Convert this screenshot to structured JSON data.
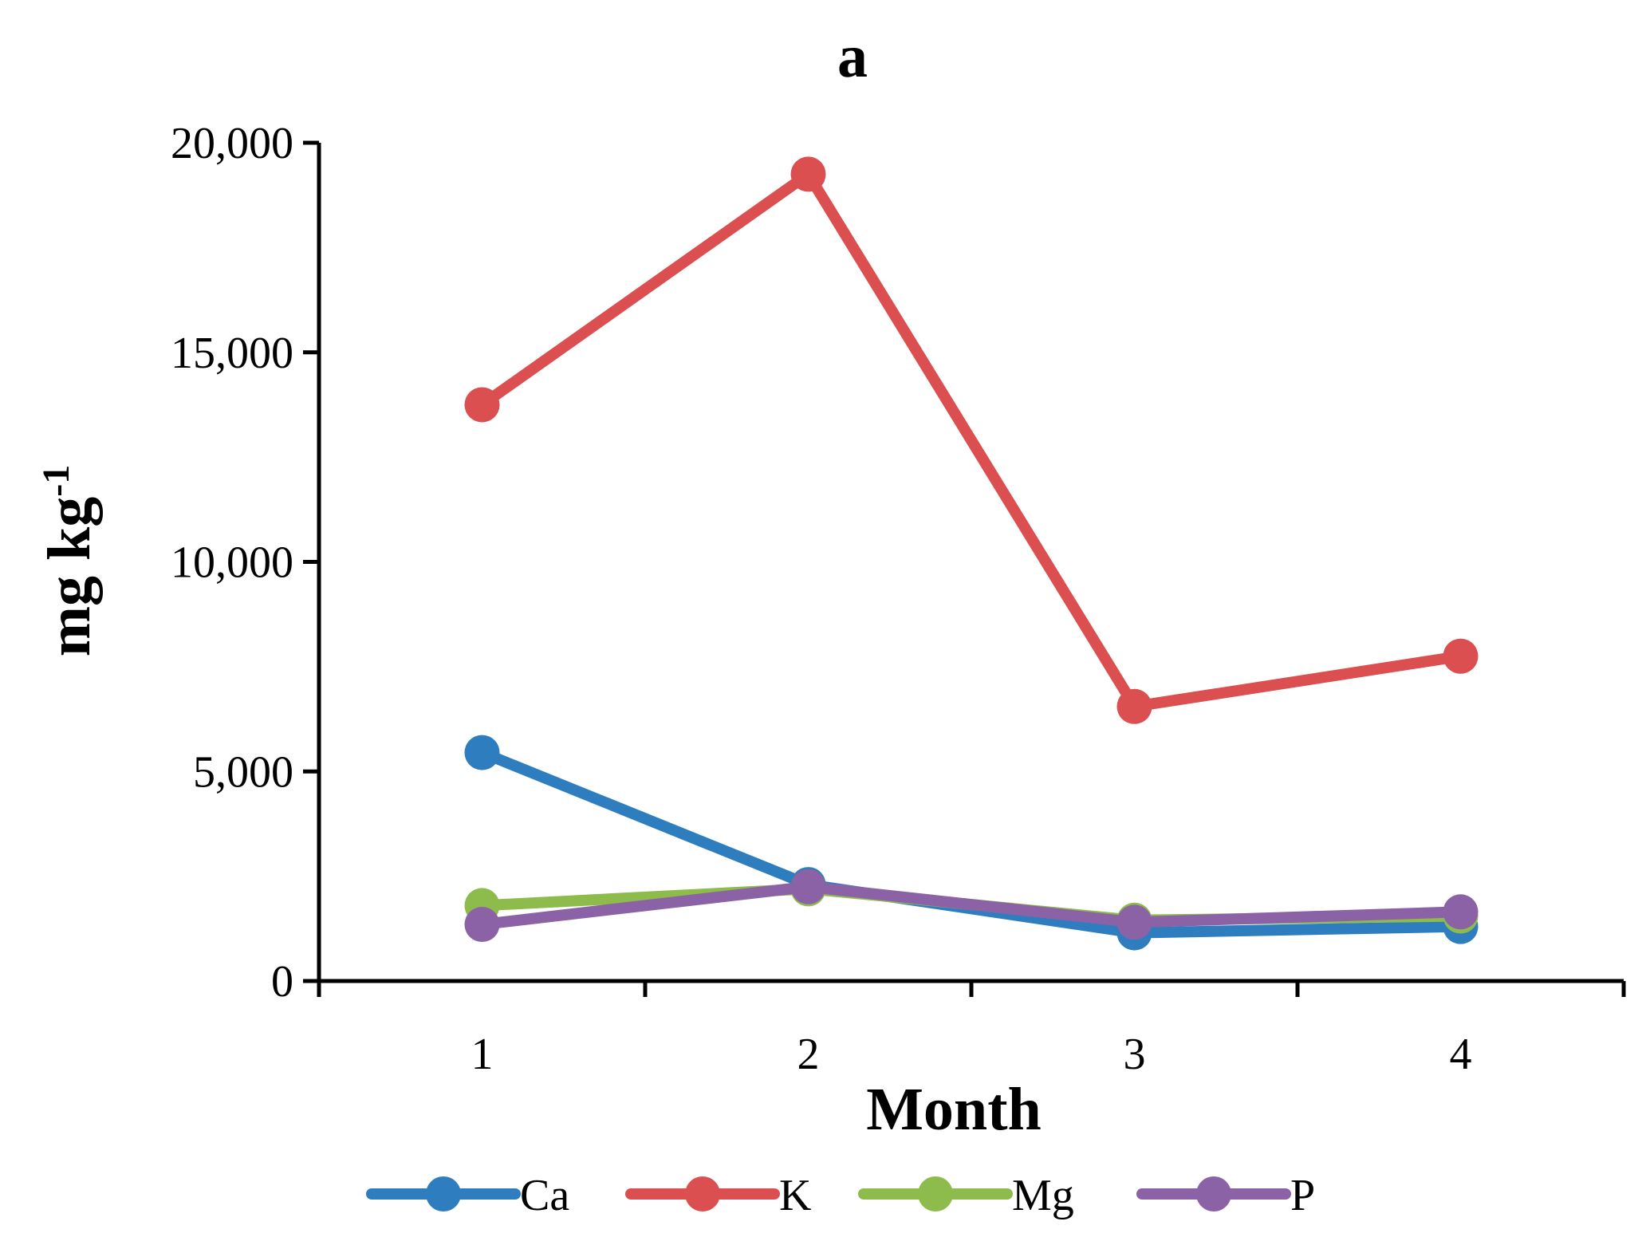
{
  "chart_data": {
    "type": "line",
    "title": "a",
    "xlabel": "Month",
    "ylabel": "mg kg",
    "ylabel_superscript": "-1",
    "categories": [
      "1",
      "2",
      "3",
      "4"
    ],
    "ylim": [
      0,
      20000
    ],
    "yticks": [
      0,
      5000,
      10000,
      15000,
      20000
    ],
    "ytick_labels": [
      "0",
      "5,000",
      "10,000",
      "15,000",
      "20,000"
    ],
    "grid": false,
    "legend_position": "bottom",
    "series": [
      {
        "name": "Ca",
        "color": "#2E7EBF",
        "values": [
          5450,
          2300,
          1150,
          1300
        ]
      },
      {
        "name": "K",
        "color": "#DB4F50",
        "values": [
          13750,
          19250,
          6550,
          7750
        ]
      },
      {
        "name": "Mg",
        "color": "#8DBB4C",
        "values": [
          1800,
          2200,
          1450,
          1550
        ]
      },
      {
        "name": "P",
        "color": "#8C62A7",
        "values": [
          1350,
          2250,
          1400,
          1650
        ]
      }
    ]
  }
}
